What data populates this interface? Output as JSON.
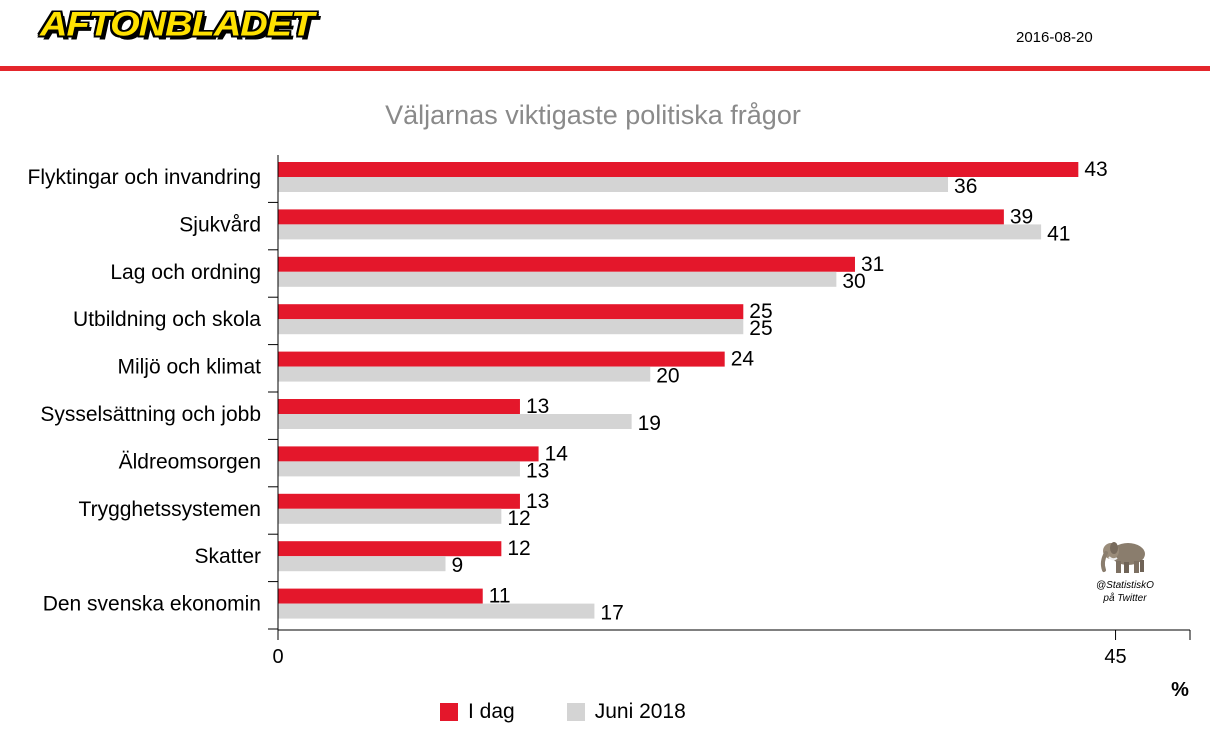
{
  "header": {
    "logo_text": "AFTONBLADET",
    "date": "2016-08-20",
    "accent_color": "#e4262c"
  },
  "watermark": {
    "icon": "elephant-icon",
    "line1": "@StatistiskO",
    "line2": "på Twitter"
  },
  "chart_data": {
    "type": "bar",
    "orientation": "horizontal",
    "title": "Väljarnas viktigaste politiska frågor",
    "categories": [
      "Flyktingar och invandring",
      "Sjukvård",
      "Lag och ordning",
      "Utbildning och skola",
      "Miljö och klimat",
      "Sysselsättning och jobb",
      "Äldreomsorgen",
      "Trygghetssystemen",
      "Skatter",
      "Den svenska ekonomin"
    ],
    "series": [
      {
        "name": "I dag",
        "color": "#e4172b",
        "values": [
          43,
          39,
          31,
          25,
          24,
          13,
          14,
          13,
          12,
          11
        ]
      },
      {
        "name": "Juni 2018",
        "color": "#d4d4d4",
        "values": [
          36,
          41,
          30,
          25,
          20,
          19,
          13,
          12,
          9,
          17
        ]
      }
    ],
    "xlim": [
      0,
      49
    ],
    "xticks": [
      0,
      45
    ],
    "xtick_labels": [
      "0",
      "45"
    ],
    "xlabel": "%",
    "legend_position": "bottom"
  }
}
